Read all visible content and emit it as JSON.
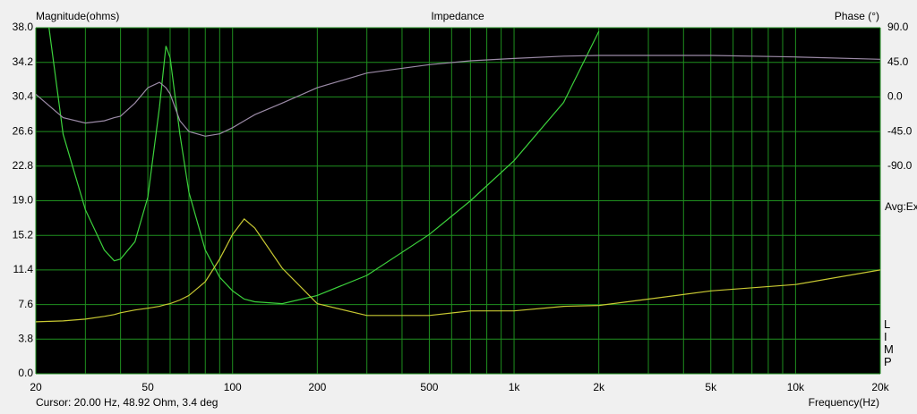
{
  "window": {
    "cursor": "Cursor: 20.00 Hz, 48.92 Ohm, 3.4 deg",
    "avg": "Avg:Ex",
    "brand": "LIMP"
  },
  "chart_data": {
    "type": "line",
    "title": "Impedance",
    "y_label": "Magnitude(ohms)",
    "y2_label": "Phase (°)",
    "x_label": "Frequency(Hz)",
    "log_x": true,
    "grid": true,
    "grid_color": "#1f8f1f",
    "background": "#000000",
    "x": [
      20,
      25,
      30,
      35,
      38,
      40,
      45,
      50,
      55,
      58,
      60,
      65,
      70,
      80,
      90,
      100,
      110,
      120,
      150,
      200,
      300,
      500,
      700,
      1000,
      1500,
      2000,
      3000,
      5000,
      10000,
      20000
    ],
    "xlim": [
      20,
      20000
    ],
    "xticks": [
      20,
      50,
      100,
      200,
      500,
      {
        "value": 1000,
        "label": "1k"
      },
      {
        "value": 2000,
        "label": "2k"
      },
      {
        "value": 5000,
        "label": "5k"
      },
      {
        "value": 10000,
        "label": "10k"
      },
      {
        "value": 20000,
        "label": "20k"
      }
    ],
    "xminor": [
      30,
      40,
      60,
      70,
      80,
      90,
      300,
      400,
      600,
      700,
      800,
      900,
      3000,
      4000,
      6000,
      7000,
      8000,
      9000
    ],
    "ylim": [
      0,
      38
    ],
    "yticks": [
      {
        "value": 0,
        "label": "0.0"
      },
      {
        "value": 3.8,
        "label": "3.8"
      },
      {
        "value": 7.6,
        "label": "7.6"
      },
      {
        "value": 11.4,
        "label": "11.4"
      },
      {
        "value": 15.2,
        "label": "15.2"
      },
      {
        "value": 19,
        "label": "19.0"
      },
      {
        "value": 22.8,
        "label": "22.8"
      },
      {
        "value": 26.6,
        "label": "26.6"
      },
      {
        "value": 30.4,
        "label": "30.4"
      },
      {
        "value": 34.2,
        "label": "34.2"
      },
      {
        "value": 38,
        "label": "38.0"
      }
    ],
    "y2lim": [
      -360,
      90
    ],
    "y2ticks": [
      {
        "value": 90,
        "label": "90.0"
      },
      {
        "value": 45,
        "label": "45.0"
      },
      {
        "value": 0,
        "label": "0.0"
      },
      {
        "value": -45,
        "label": "-45.0"
      },
      {
        "value": -90,
        "label": "-90.0"
      }
    ],
    "series": [
      {
        "color": "#3cd23c",
        "values": [
          48.92,
          26.3,
          18,
          13.6,
          12.4,
          12.6,
          14.5,
          19.4,
          29.3,
          36,
          34.7,
          26.3,
          19.9,
          13.6,
          10.6,
          9.1,
          8.2,
          7.9,
          7.7,
          8.6,
          10.8,
          15.3,
          19,
          23.4,
          29.8,
          37.6,
          null,
          null,
          null,
          null
        ]
      },
      {
        "color": "#c8c832",
        "values": [
          5.7,
          5.8,
          6,
          6.3,
          6.5,
          6.7,
          7,
          7.2,
          7.4,
          7.6,
          7.7,
          8.1,
          8.6,
          10.1,
          12.6,
          15.3,
          17,
          16,
          11.6,
          7.7,
          6.4,
          6.4,
          6.9,
          6.9,
          7.4,
          7.5,
          8.2,
          9.1,
          9.8,
          11.4
        ]
      },
      {
        "color": "#9b8aa6",
        "axis": "y2",
        "values": [
          3.4,
          -27,
          -34,
          -31,
          -27,
          -25,
          -8,
          12,
          19,
          12,
          4,
          -31,
          -45,
          -51,
          -48,
          -40,
          -31,
          -23,
          -8,
          12,
          31,
          42,
          47,
          50,
          53,
          54,
          54,
          54,
          52,
          49
        ]
      }
    ]
  }
}
